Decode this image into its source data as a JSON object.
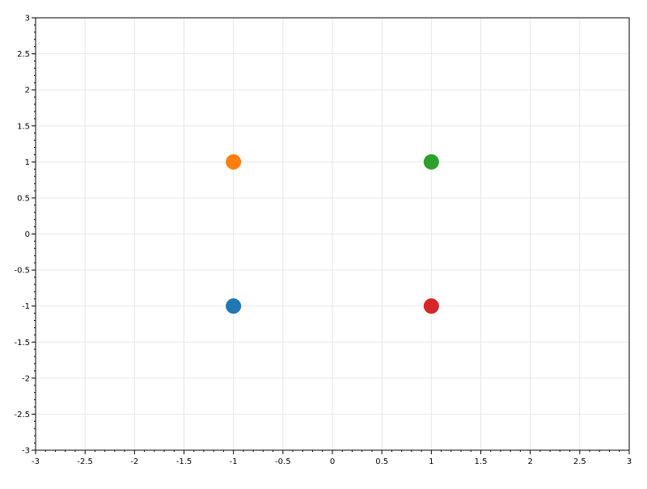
{
  "chart_data": {
    "type": "scatter",
    "title": "",
    "xlabel": "",
    "ylabel": "",
    "xlim": [
      -3,
      3
    ],
    "ylim": [
      -3,
      3
    ],
    "grid": true,
    "x_ticks": [
      "-3",
      "-2.5",
      "-2",
      "-1.5",
      "-1",
      "-0.5",
      "0",
      "0.5",
      "1",
      "1.5",
      "2",
      "2.5",
      "3"
    ],
    "y_ticks": [
      "3",
      "2.5",
      "2",
      "1.5",
      "1",
      "0.5",
      "0",
      "-0.5",
      "-1",
      "-1.5",
      "-2",
      "-2.5",
      "-3"
    ],
    "points": [
      {
        "x": -1,
        "y": -1,
        "color": "#1f77b4"
      },
      {
        "x": -1,
        "y": 1,
        "color": "#ff7f0e"
      },
      {
        "x": 1,
        "y": 1,
        "color": "#2ca02c"
      },
      {
        "x": 1,
        "y": -1,
        "color": "#d62728"
      }
    ]
  }
}
